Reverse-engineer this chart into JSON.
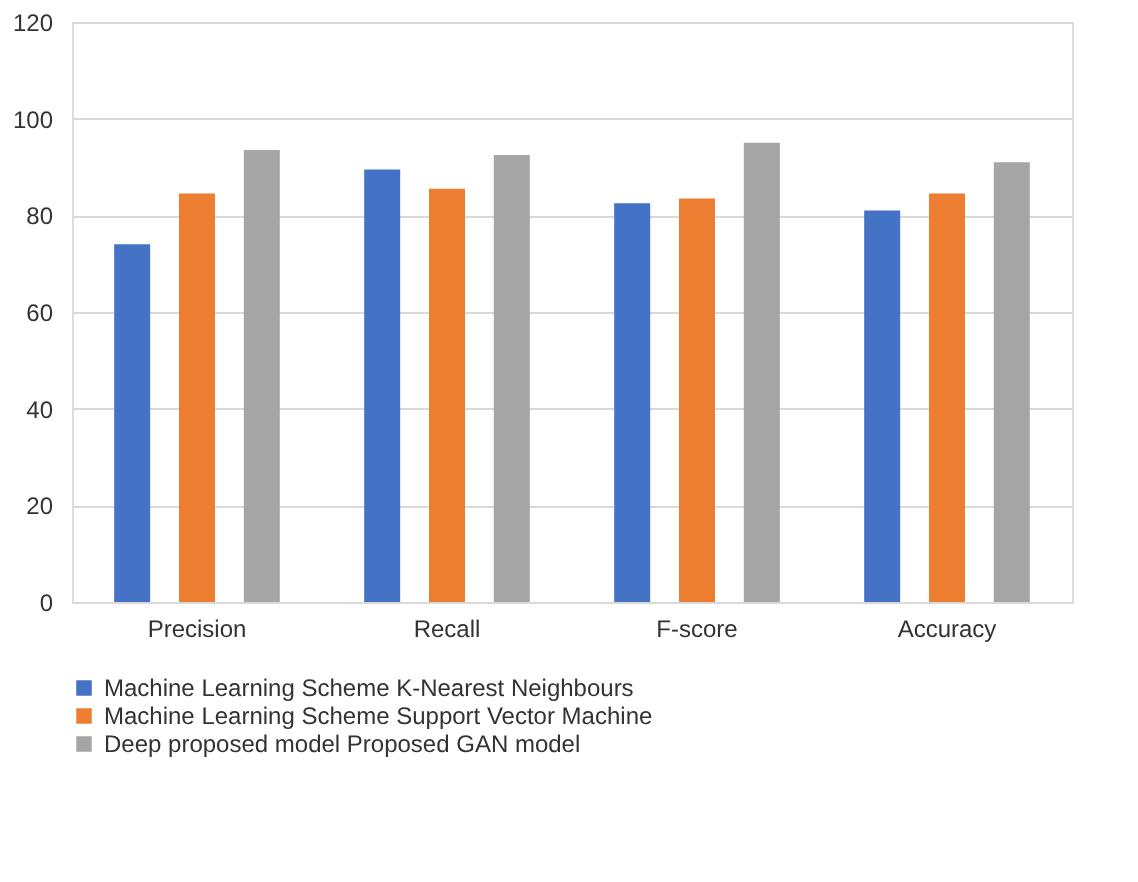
{
  "chart_data": {
    "type": "bar",
    "categories": [
      "Precision",
      "Recall",
      "F-score",
      "Accuracy"
    ],
    "series": [
      {
        "name": "Machine Learning Scheme K-Nearest Neighbours",
        "color": "#4472c4",
        "values": [
          74,
          89.5,
          82.5,
          81
        ]
      },
      {
        "name": "Machine Learning Scheme Support Vector Machine",
        "color": "#ed7d31",
        "values": [
          84.5,
          85.5,
          83.5,
          84.5
        ]
      },
      {
        "name": "Deep proposed model Proposed GAN model",
        "color": "#a5a5a5",
        "values": [
          93.5,
          92.5,
          95,
          91
        ]
      }
    ],
    "ylim": [
      0,
      120
    ],
    "yticks": [
      0,
      20,
      40,
      60,
      80,
      100,
      120
    ],
    "grid": "y",
    "legend": "bottom"
  }
}
